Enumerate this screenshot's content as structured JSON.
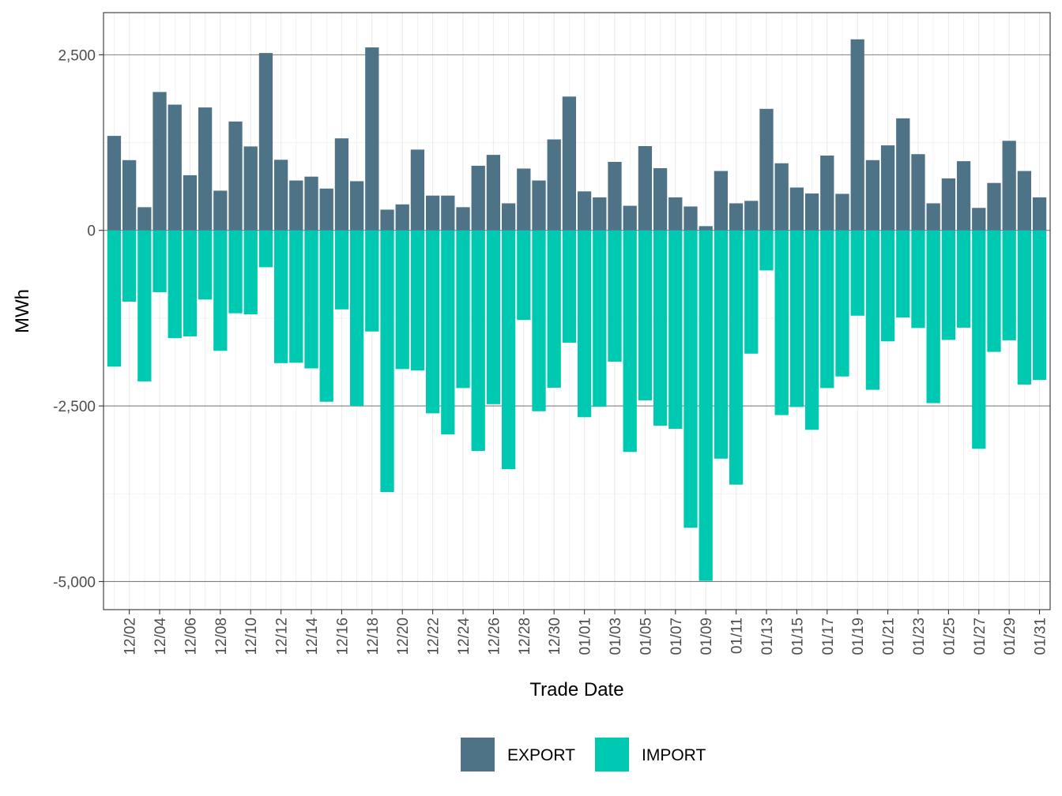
{
  "chart_data": {
    "type": "bar",
    "stacked": "diverging",
    "xlabel": "Trade Date",
    "ylabel": "MWh",
    "ylim": [
      -5400,
      3100
    ],
    "yticks": [
      {
        "value": 2500,
        "label": "2,500"
      },
      {
        "value": 0,
        "label": "0"
      },
      {
        "value": -2500,
        "label": "-2,500"
      },
      {
        "value": -5000,
        "label": "-5,000"
      }
    ],
    "x_tick_labels": [
      "12/02",
      "12/04",
      "12/06",
      "12/08",
      "12/10",
      "12/12",
      "12/14",
      "12/16",
      "12/18",
      "12/20",
      "12/22",
      "12/24",
      "12/26",
      "12/28",
      "12/30",
      "01/01",
      "01/03",
      "01/05",
      "01/07",
      "01/09",
      "01/11",
      "01/13",
      "01/15",
      "01/17",
      "01/19",
      "01/21",
      "01/23",
      "01/25",
      "01/27",
      "01/29",
      "01/31"
    ],
    "categories": [
      "12/01",
      "12/02",
      "12/03",
      "12/04",
      "12/05",
      "12/06",
      "12/07",
      "12/08",
      "12/09",
      "12/10",
      "12/11",
      "12/12",
      "12/13",
      "12/14",
      "12/15",
      "12/16",
      "12/17",
      "12/18",
      "12/19",
      "12/20",
      "12/21",
      "12/22",
      "12/23",
      "12/24",
      "12/25",
      "12/26",
      "12/27",
      "12/28",
      "12/29",
      "12/30",
      "12/31",
      "01/01",
      "01/02",
      "01/03",
      "01/04",
      "01/05",
      "01/06",
      "01/07",
      "01/08",
      "01/09",
      "01/10",
      "01/11",
      "01/12",
      "01/13",
      "01/14",
      "01/15",
      "01/16",
      "01/17",
      "01/18",
      "01/19",
      "01/20",
      "01/21",
      "01/22",
      "01/23",
      "01/24",
      "01/25",
      "01/26",
      "01/27",
      "01/28",
      "01/29",
      "01/30",
      "01/31"
    ],
    "series": [
      {
        "name": "EXPORT",
        "color": "#4e7387",
        "values": [
          1345,
          1000,
          330,
          1970,
          1790,
          785,
          1750,
          565,
          1550,
          1195,
          2525,
          1005,
          710,
          765,
          595,
          1310,
          700,
          2605,
          295,
          370,
          1150,
          495,
          495,
          330,
          920,
          1075,
          385,
          880,
          710,
          1295,
          1905,
          555,
          470,
          975,
          350,
          1200,
          885,
          470,
          340,
          60,
          845,
          385,
          420,
          1730,
          955,
          610,
          525,
          1065,
          520,
          2720,
          1000,
          1210,
          1595,
          1085,
          385,
          740,
          985,
          320,
          675,
          1275,
          845,
          470
        ]
      },
      {
        "name": "IMPORT",
        "color": "#00c9b1",
        "values": [
          -1940,
          -1015,
          -2150,
          -880,
          -1535,
          -1510,
          -985,
          -1715,
          -1180,
          -1195,
          -525,
          -1890,
          -1885,
          -1965,
          -2440,
          -1125,
          -2500,
          -1440,
          -3725,
          -1975,
          -1995,
          -2605,
          -2905,
          -2245,
          -3140,
          -2475,
          -3400,
          -1275,
          -2575,
          -2240,
          -1600,
          -2660,
          -2510,
          -1870,
          -3155,
          -2420,
          -2780,
          -2825,
          -4235,
          -4990,
          -3250,
          -3620,
          -1755,
          -570,
          -2630,
          -2515,
          -2840,
          -2245,
          -2080,
          -1215,
          -2270,
          -1580,
          -1240,
          -1390,
          -2460,
          -1560,
          -1385,
          -3110,
          -1730,
          -1565,
          -2195,
          -2130
        ]
      }
    ],
    "legend": {
      "position": "bottom",
      "items": [
        "EXPORT",
        "IMPORT"
      ]
    },
    "grid": true
  }
}
